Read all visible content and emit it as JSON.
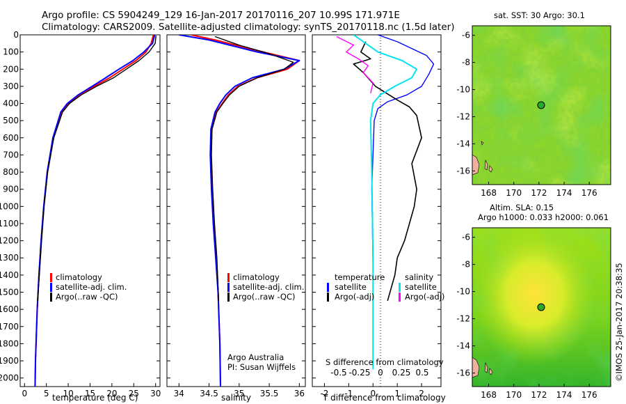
{
  "title_line1": "Argo profile: CS 5904249_129 16-Jan-2017 20170116_207 10.99S 171.971E",
  "title_line2": "Climatology: CARS2009. Satellite-adjusted climatology: synTS_20170118.nc (1.5d later)",
  "side_stamp": "©IMOS 25-Jan-2017 20:38:35",
  "colors": {
    "climatology": "#ff0000",
    "satellite": "#0000ff",
    "argo": "#000000",
    "salinity_sat": "#00e5ee",
    "salinity_argo": "#ff00ff"
  },
  "panels": {
    "temperature": {
      "xlabel": "temperature (deg C)",
      "legend": [
        "climatology",
        "satellite-adj. clim.",
        "Argo(..raw -QC)"
      ]
    },
    "salinity": {
      "xlabel": "salinity",
      "legend": [
        "climatology",
        "satellite-adj. clim.",
        "Argo(..raw -QC)"
      ],
      "note_line1": "Argo Australia",
      "note_line2": "PI: Susan Wijffels"
    },
    "difference": {
      "xlabel": "T difference from climatology",
      "top_label": "S difference from climatology",
      "legend_temp_title": "temperature",
      "legend_sal_title": "salinity",
      "legend_items": [
        "satellite",
        "Argo(-adj)",
        "satellite",
        "Argo(-adj)"
      ]
    },
    "sst_map": {
      "title": "sat. SST: 30 Argo: 30.1"
    },
    "sla_map": {
      "title_line1": "Altim. SLA: 0.15",
      "title_line2": "Argo h1000: 0.033 h2000: 0.061"
    }
  },
  "chart_data": [
    {
      "type": "line",
      "name": "temperature profile",
      "xlabel": "temperature (deg C)",
      "xlim": [
        -1,
        31
      ],
      "ylim": [
        0,
        2050
      ],
      "xticks": [
        0,
        5,
        10,
        15,
        20,
        25,
        30
      ],
      "yticks": [
        0,
        100,
        200,
        300,
        400,
        500,
        600,
        700,
        800,
        900,
        1000,
        1100,
        1200,
        1300,
        1400,
        1500,
        1600,
        1700,
        1800,
        1900,
        2000
      ],
      "yaxis_inverted": true,
      "series": [
        {
          "name": "climatology",
          "color": "#ff0000",
          "width": 2,
          "x": [
            29.5,
            29.0,
            27.8,
            25.5,
            22.5,
            19.5,
            16.0,
            12.5,
            10.0,
            8.5,
            6.5,
            5.2,
            4.4,
            3.8,
            3.3,
            2.9,
            2.5,
            2.4
          ],
          "y": [
            0,
            50,
            100,
            150,
            200,
            250,
            300,
            350,
            400,
            450,
            600,
            800,
            1000,
            1200,
            1400,
            1600,
            1900,
            2050
          ]
        },
        {
          "name": "satellite-adj. clim.",
          "color": "#0000ff",
          "width": 2,
          "x": [
            29.8,
            29.3,
            27.3,
            24.8,
            21.6,
            18.6,
            15.5,
            12.3,
            9.8,
            8.3,
            6.5,
            5.2,
            4.4,
            3.8,
            3.3,
            2.9,
            2.5,
            2.4
          ],
          "y": [
            0,
            50,
            100,
            150,
            200,
            250,
            300,
            350,
            400,
            450,
            600,
            800,
            1000,
            1200,
            1400,
            1600,
            1900,
            2050
          ]
        },
        {
          "name": "Argo(..raw -QC)",
          "color": "#000000",
          "width": 1.4,
          "x": [
            30.1,
            29.9,
            28.5,
            26.2,
            23.3,
            20.4,
            16.5,
            13.0,
            10.3,
            8.7,
            6.7,
            5.3,
            4.5,
            3.9,
            3.4,
            3.0
          ],
          "y": [
            5,
            50,
            100,
            150,
            200,
            250,
            300,
            350,
            400,
            450,
            600,
            800,
            1000,
            1200,
            1400,
            1550
          ]
        }
      ]
    },
    {
      "type": "line",
      "name": "salinity profile",
      "xlabel": "salinity",
      "xlim": [
        33.8,
        36.1
      ],
      "ylim": [
        0,
        2050
      ],
      "xticks": [
        34,
        34.5,
        35,
        35.5,
        36
      ],
      "yaxis_inverted": true,
      "series": [
        {
          "name": "climatology",
          "color": "#ff0000",
          "width": 2,
          "x": [
            34.2,
            34.6,
            35.4,
            36.0,
            35.8,
            35.3,
            34.98,
            34.82,
            34.72,
            34.62,
            34.54,
            34.53,
            34.55,
            34.58,
            34.62,
            34.65,
            34.68,
            34.69
          ],
          "y": [
            0,
            30,
            100,
            150,
            200,
            250,
            300,
            350,
            400,
            450,
            550,
            700,
            900,
            1100,
            1300,
            1500,
            1800,
            2050
          ]
        },
        {
          "name": "satellite-adj. clim.",
          "color": "#0000ff",
          "width": 2,
          "x": [
            34.0,
            34.5,
            35.3,
            36.0,
            35.75,
            35.22,
            34.93,
            34.78,
            34.68,
            34.6,
            34.53,
            34.52,
            34.54,
            34.57,
            34.61,
            34.65,
            34.68,
            34.69
          ],
          "y": [
            0,
            30,
            100,
            150,
            200,
            250,
            300,
            350,
            400,
            450,
            550,
            700,
            900,
            1100,
            1300,
            1500,
            1800,
            2050
          ]
        },
        {
          "name": "Argo(..raw -QC)",
          "color": "#000000",
          "width": 1.4,
          "x": [
            34.6,
            35.0,
            35.5,
            35.9,
            35.75,
            35.3,
            35.0,
            34.84,
            34.73,
            34.63,
            34.55,
            34.54,
            34.56,
            34.59,
            34.63,
            34.66
          ],
          "y": [
            10,
            60,
            110,
            160,
            200,
            250,
            300,
            350,
            400,
            450,
            550,
            700,
            900,
            1100,
            1300,
            1550
          ]
        }
      ]
    },
    {
      "type": "line",
      "name": "difference from climatology",
      "xlabel": "T difference from climatology",
      "xlim": [
        -2.5,
        2.8
      ],
      "xticks": [
        -2,
        -1,
        0,
        1,
        2
      ],
      "top_xticks": [
        -0.5,
        -0.25,
        0,
        0.25,
        0.5
      ],
      "top_xlabel": "S difference from climatology",
      "yaxis_inverted": true,
      "series": [
        {
          "name": "satellite",
          "group": "temperature",
          "color": "#0000ff",
          "width": 1.4,
          "x": [
            0.2,
            1.0,
            2.2,
            2.5,
            2.3,
            2.0,
            1.4,
            0.6,
            0.2,
            0.05,
            -0.05,
            0.0
          ],
          "y": [
            0,
            40,
            120,
            170,
            230,
            300,
            350,
            390,
            430,
            500,
            900,
            1350
          ]
        },
        {
          "name": "Argo(-adj)",
          "group": "temperature",
          "color": "#000000",
          "width": 1.6,
          "x": [
            -0.3,
            -0.5,
            -0.1,
            -0.8,
            -0.4,
            0.1,
            1.0,
            1.5,
            1.8,
            2.0,
            1.6,
            1.8,
            1.7,
            1.5,
            1.3,
            1.0,
            0.9,
            0.6
          ],
          "y": [
            40,
            100,
            140,
            170,
            220,
            300,
            380,
            420,
            470,
            600,
            750,
            900,
            1000,
            1100,
            1200,
            1300,
            1400,
            1550
          ]
        },
        {
          "name": "satellite",
          "group": "salinity",
          "color": "#00e5ee",
          "width": 2,
          "x": [
            -0.8,
            -0.3,
            0.2,
            1.2,
            1.8,
            1.6,
            0.9,
            0.3,
            0.0,
            -0.1,
            -0.05,
            0.0,
            0.0
          ],
          "y": [
            0,
            50,
            100,
            150,
            200,
            250,
            300,
            350,
            400,
            500,
            800,
            1300,
            1950
          ]
        },
        {
          "name": "Argo(-adj)",
          "group": "salinity",
          "color": "#ff00ff",
          "width": 1.4,
          "x": [
            -1.5,
            -0.8,
            -1.1,
            -0.6,
            -0.2,
            -0.4,
            0.0,
            -0.1
          ],
          "y": [
            10,
            60,
            100,
            140,
            180,
            220,
            280,
            340
          ]
        }
      ]
    }
  ]
}
